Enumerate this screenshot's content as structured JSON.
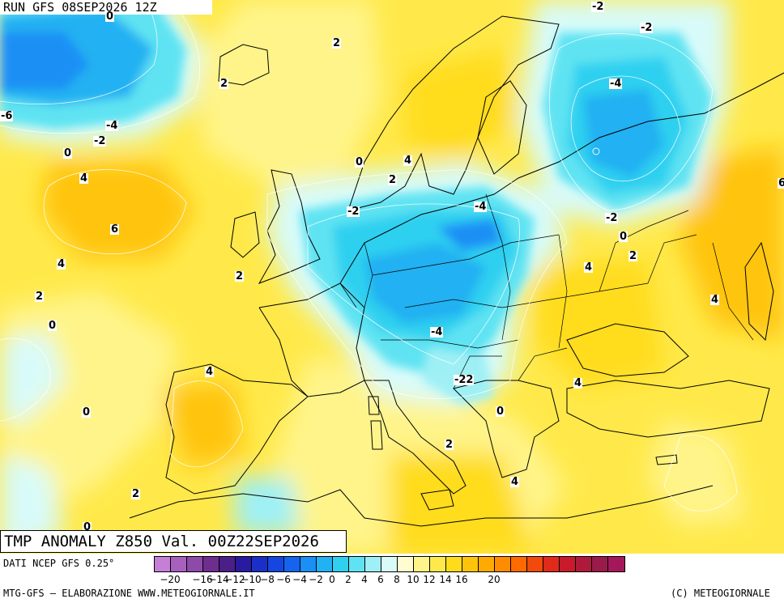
{
  "header": {
    "run_label": "RUN GFS 08SEP2026 12Z",
    "title": "TMP ANOMALY Z850 Val. 00Z22SEP2026"
  },
  "map": {
    "variable": "850 hPa temperature anomaly",
    "region": "Europe",
    "contour_labels": [
      {
        "text": "0"
      },
      {
        "text": "-2"
      },
      {
        "text": "2"
      },
      {
        "text": "2"
      },
      {
        "text": "-6"
      },
      {
        "text": "-4"
      },
      {
        "text": "-2"
      },
      {
        "text": "0"
      },
      {
        "text": "4"
      },
      {
        "text": "6"
      },
      {
        "text": "4"
      },
      {
        "text": "2"
      },
      {
        "text": "0"
      },
      {
        "text": "2"
      },
      {
        "text": "0"
      },
      {
        "text": "4"
      },
      {
        "text": "2"
      },
      {
        "text": "-2"
      },
      {
        "text": "-2"
      },
      {
        "text": "-4"
      },
      {
        "text": "-2"
      },
      {
        "text": "-4"
      },
      {
        "text": "-2"
      },
      {
        "text": "0"
      },
      {
        "text": "2"
      },
      {
        "text": "4"
      },
      {
        "text": "4"
      },
      {
        "text": "-4"
      },
      {
        "text": "-2"
      },
      {
        "text": "0"
      },
      {
        "text": "4"
      },
      {
        "text": "4"
      },
      {
        "text": "2"
      },
      {
        "text": "0"
      },
      {
        "text": "2"
      },
      {
        "text": "4"
      },
      {
        "text": "6"
      },
      {
        "text": "0"
      },
      {
        "text": "2"
      },
      {
        "text": "-2"
      }
    ]
  },
  "legend": {
    "colors": [
      "#c57fd6",
      "#a860bf",
      "#8e4aa8",
      "#6f2e8e",
      "#4a1f8a",
      "#2a1aa0",
      "#1a2fc8",
      "#1646e0",
      "#1464f0",
      "#1a8ff5",
      "#22b1f2",
      "#2fd0f0",
      "#5fe3f2",
      "#9ff0f5",
      "#d8fbfa",
      "#fffcd0",
      "#fff48a",
      "#ffe94a",
      "#ffdc1a",
      "#ffc40a",
      "#ffaa00",
      "#ff8c00",
      "#ff6a00",
      "#f24a0a",
      "#e02a1a",
      "#c81a2a",
      "#b01a3a",
      "#9a1a4a",
      "#a4185a"
    ],
    "ticks": [
      "-20",
      "-18",
      "-16",
      "-14",
      "-12",
      "-10",
      "-8",
      "-6",
      "-4",
      "-2",
      "0",
      "2",
      "4",
      "6",
      "8",
      "10",
      "12",
      "14",
      "16",
      "18",
      "20"
    ],
    "ticks_visible": [
      "-20",
      "-16",
      "-14",
      "-12",
      "-10",
      "-8",
      "-6",
      "-4",
      "-2",
      "0",
      "2",
      "4",
      "6",
      "8",
      "10",
      "12",
      "14",
      "16",
      "20"
    ]
  },
  "footer": {
    "source": "DATI NCEP GFS 0.25°",
    "credit_left": "MTG-GFS — ELABORAZIONE WWW.METEOGIORNALE.IT",
    "credit_right": "(C) METEOGIORNALE"
  }
}
